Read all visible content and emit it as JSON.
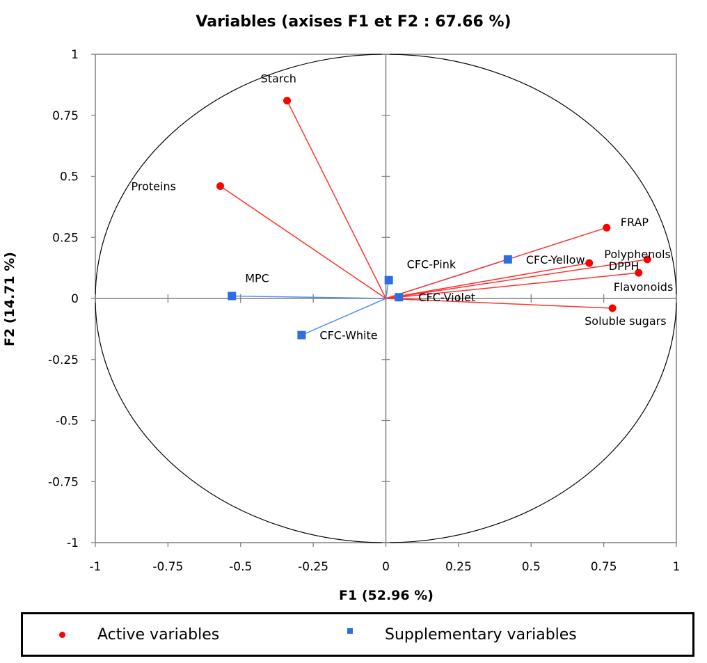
{
  "chart_data": {
    "type": "scatter",
    "title": "Variables (axises F1 et F2 : 67.66 %)",
    "xlabel": "F1 (52.96 %)",
    "ylabel": "F2 (14.71 %)",
    "xlim": [
      -1,
      1
    ],
    "ylim": [
      -1,
      1
    ],
    "xticks": [
      "-1",
      "-0.75",
      "-0.5",
      "-0.25",
      "0",
      "0.25",
      "0.5",
      "0.75",
      "1"
    ],
    "yticks": [
      "1",
      "0.75",
      "0.5",
      "0.25",
      "0",
      "-0.25",
      "-0.5",
      "-0.75",
      "-1"
    ],
    "xtick_values": [
      -1,
      -0.75,
      -0.5,
      -0.25,
      0,
      0.25,
      0.5,
      0.75,
      1
    ],
    "ytick_values": [
      1,
      0.75,
      0.5,
      0.25,
      0,
      -0.25,
      -0.5,
      -0.75,
      -1
    ],
    "unit_circle": true,
    "grid": false,
    "legend_position": "bottom",
    "colors": {
      "active": "#ff0000",
      "supplementary": "#2e6fe0",
      "active_line": "#ff3030",
      "supplementary_line": "#4f8ff0"
    },
    "series": [
      {
        "name": "Active variables",
        "marker": "circle",
        "points": [
          {
            "label": "Starch",
            "x": -0.34,
            "y": 0.81
          },
          {
            "label": "Proteins",
            "x": -0.57,
            "y": 0.46
          },
          {
            "label": "FRAP",
            "x": 0.76,
            "y": 0.29
          },
          {
            "label": "Polyphenols",
            "x": 0.9,
            "y": 0.16
          },
          {
            "label": "DPPH",
            "x": 0.7,
            "y": 0.145
          },
          {
            "label": "Flavonoids",
            "x": 0.87,
            "y": 0.105
          },
          {
            "label": "Soluble sugars",
            "x": 0.78,
            "y": -0.04
          }
        ]
      },
      {
        "name": "Supplementary  variables",
        "marker": "square",
        "points": [
          {
            "label": "CFC-Pink",
            "x": 0.01,
            "y": 0.075
          },
          {
            "label": "CFC-Yellow",
            "x": 0.42,
            "y": 0.16
          },
          {
            "label": "CFC-Violet",
            "x": 0.045,
            "y": 0.005
          },
          {
            "label": "MPC",
            "x": -0.53,
            "y": 0.01
          },
          {
            "label": "CFC-White",
            "x": -0.29,
            "y": -0.15
          }
        ]
      }
    ]
  },
  "legend": {
    "active_label": "Active variables",
    "supplementary_label": "Supplementary  variables"
  }
}
